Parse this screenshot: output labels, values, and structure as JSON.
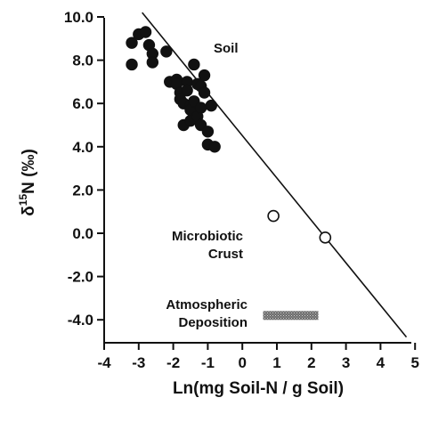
{
  "chart_data": {
    "type": "scatter",
    "xlabel": "Ln(mg Soil-N / g Soil)",
    "ylabel_prefix": "δ",
    "ylabel_sup": "15",
    "ylabel_rest": "N (‰)",
    "xlim": [
      -4,
      5
    ],
    "ylim": [
      -4.8,
      10.2
    ],
    "x_ticks": [
      -4,
      -3,
      -2,
      -1,
      0,
      1,
      2,
      3,
      4,
      5
    ],
    "x_tick_labels": [
      "-4",
      "-3",
      "-2",
      "-1",
      "0",
      "1",
      "2",
      "3",
      "4",
      "5"
    ],
    "y_ticks": [
      10,
      8,
      6,
      4,
      2,
      0,
      -2,
      -4
    ],
    "y_tick_labels": [
      "10.0",
      "8.0",
      "6.0",
      "4.0",
      "2.0",
      "0.0",
      "-2.0",
      "-4.0"
    ],
    "grid": false,
    "series": [
      {
        "marker": "filled-circle",
        "points": [
          [
            -3.2,
            8.8
          ],
          [
            -3.2,
            7.8
          ],
          [
            -3.0,
            9.2
          ],
          [
            -2.8,
            9.3
          ],
          [
            -2.7,
            8.7
          ],
          [
            -2.6,
            8.3
          ],
          [
            -2.6,
            7.9
          ],
          [
            -2.2,
            8.4
          ],
          [
            -2.1,
            7.0
          ],
          [
            -1.9,
            7.1
          ],
          [
            -1.9,
            6.9
          ],
          [
            -1.8,
            6.5
          ],
          [
            -1.8,
            6.2
          ],
          [
            -1.7,
            6.0
          ],
          [
            -1.7,
            5.0
          ],
          [
            -1.6,
            7.0
          ],
          [
            -1.6,
            6.6
          ],
          [
            -1.5,
            5.9
          ],
          [
            -1.5,
            5.7
          ],
          [
            -1.5,
            5.2
          ],
          [
            -1.4,
            7.8
          ],
          [
            -1.4,
            6.1
          ],
          [
            -1.3,
            6.9
          ],
          [
            -1.3,
            5.4
          ],
          [
            -1.2,
            6.8
          ],
          [
            -1.2,
            5.8
          ],
          [
            -1.2,
            5.0
          ],
          [
            -1.1,
            7.3
          ],
          [
            -1.1,
            6.5
          ],
          [
            -1.0,
            4.7
          ],
          [
            -1.0,
            4.1
          ],
          [
            -0.9,
            5.9
          ],
          [
            -0.8,
            4.0
          ]
        ]
      },
      {
        "marker": "open-circle",
        "points": [
          [
            0.9,
            0.8
          ],
          [
            2.4,
            -0.2
          ]
        ]
      }
    ],
    "regression_line": {
      "x1": -2.9,
      "y1": 10.2,
      "x2": 4.75,
      "y2": -4.8
    },
    "range_bar": {
      "x1": 0.6,
      "x2": 2.2,
      "y": -3.8
    },
    "annotations": {
      "soil": "Soil",
      "crust_line1": "Microbiotic",
      "crust_line2": "Crust",
      "dep_line1": "Atmospheric",
      "dep_line2": "Deposition"
    }
  }
}
